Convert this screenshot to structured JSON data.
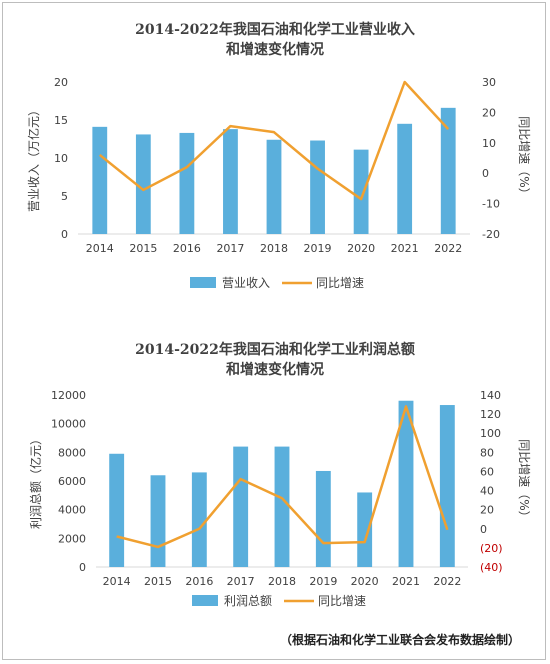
{
  "source_note": "（根据石油和化学工业联合会发布数据绘制）",
  "colors": {
    "bar": "#5aafdc",
    "line": "#f0a030",
    "axis": "#d9d9d9",
    "negative": "#c00000"
  },
  "chart_data": [
    {
      "type": "bar",
      "title_line1": "2014-2022年我国石油和化学工业营业收入",
      "title_line2": "和增速变化情况",
      "categories": [
        "2014",
        "2015",
        "2016",
        "2017",
        "2018",
        "2019",
        "2020",
        "2021",
        "2022"
      ],
      "ylabel": "营业收入（万亿元）",
      "y2label": "同比增速（%）",
      "ylim": [
        0,
        20
      ],
      "y2lim": [
        -20,
        30
      ],
      "yticks": [
        "0",
        "5",
        "10",
        "15",
        "20"
      ],
      "y2ticks": [
        "-20",
        "-10",
        "0",
        "10",
        "20",
        "30"
      ],
      "series": [
        {
          "name": "营业收入",
          "type": "bar",
          "values": [
            14.1,
            13.1,
            13.3,
            13.8,
            12.4,
            12.3,
            11.1,
            14.5,
            16.6
          ]
        },
        {
          "name": "同比增速",
          "type": "line",
          "axis": "right",
          "values": [
            6.0,
            -5.5,
            2.0,
            15.5,
            13.5,
            1.5,
            -8.5,
            30.0,
            14.5
          ]
        }
      ]
    },
    {
      "type": "bar",
      "title_line1": "2014-2022年我国石油和化学工业利润总额",
      "title_line2": "和增速变化情况",
      "categories": [
        "2014",
        "2015",
        "2016",
        "2017",
        "2018",
        "2019",
        "2020",
        "2021",
        "2022"
      ],
      "ylabel": "利润总额（亿元）",
      "y2label": "同比增速（%）",
      "ylim": [
        0,
        12000
      ],
      "y2lim": [
        -40,
        140
      ],
      "yticks": [
        "0",
        "2000",
        "4000",
        "6000",
        "8000",
        "10000",
        "12000"
      ],
      "y2ticks": [
        "(40)",
        "(20)",
        "0",
        "20",
        "40",
        "60",
        "80",
        "100",
        "120",
        "140"
      ],
      "series": [
        {
          "name": "利润总额",
          "type": "bar",
          "values": [
            7900,
            6400,
            6600,
            8400,
            8400,
            6700,
            5200,
            11600,
            11300
          ]
        },
        {
          "name": "同比增速",
          "type": "line",
          "axis": "right",
          "values": [
            -8,
            -19,
            0,
            52,
            32,
            -15,
            -14,
            128,
            -1
          ]
        }
      ]
    }
  ]
}
